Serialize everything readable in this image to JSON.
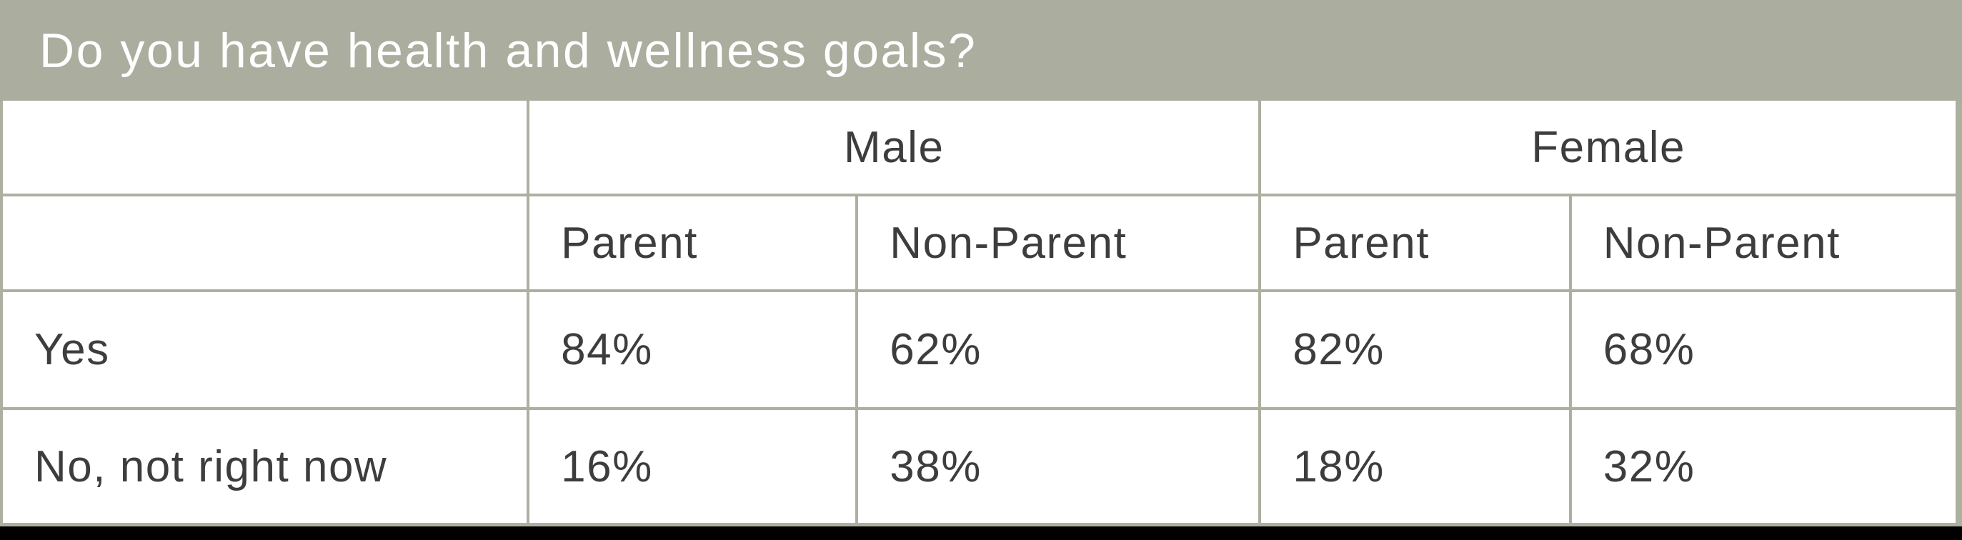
{
  "title": "Do you have health and wellness goals?",
  "colors": {
    "header_bg": "#abae9e",
    "border": "#adb09f",
    "title_text": "#ffffff",
    "cell_text": "#3d3d3d",
    "bottom_bar": "#000000"
  },
  "table": {
    "group_headers": [
      {
        "label": "Male",
        "span": 2
      },
      {
        "label": "Female",
        "span": 2
      }
    ],
    "sub_headers": [
      "Parent",
      "Non-Parent",
      "Parent",
      "Non-Parent"
    ],
    "rows": [
      {
        "label": "Yes",
        "values": [
          "84%",
          "62%",
          "82%",
          "68%"
        ]
      },
      {
        "label": "No, not right now",
        "values": [
          "16%",
          "38%",
          "18%",
          "32%"
        ]
      }
    ]
  },
  "chart_data": {
    "type": "table",
    "title": "Do you have health and wellness goals?",
    "column_groups": [
      "Male",
      "Male",
      "Female",
      "Female"
    ],
    "columns": [
      "Male Parent",
      "Male Non-Parent",
      "Female Parent",
      "Female Non-Parent"
    ],
    "row_labels": [
      "Yes",
      "No, not right now"
    ],
    "values_percent": [
      [
        84,
        62,
        82,
        68
      ],
      [
        16,
        38,
        18,
        32
      ]
    ]
  }
}
